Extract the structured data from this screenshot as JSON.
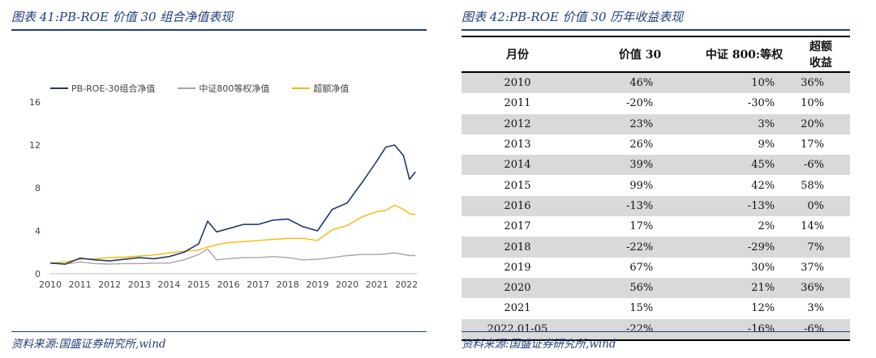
{
  "left": {
    "title": "图表 41:PB-ROE 价值 30 组合净值表现",
    "source": "资料来源:国盛证券研究所,wind"
  },
  "right": {
    "title": "图表 42:PB-ROE 价值 30 历年收益表现",
    "source": "资料来源:国盛证券研究所,wind"
  },
  "colors": {
    "navy": "#1f3a6e",
    "gray": "#a6a6a6",
    "gold": "#f5b800"
  },
  "chart_data": {
    "type": "line",
    "title": "",
    "xlabel": "",
    "ylabel": "",
    "ylim": [
      0,
      16
    ],
    "yticks": [
      "0",
      "4",
      "8",
      "12",
      "16"
    ],
    "xticks": [
      "2010",
      "2011",
      "2012",
      "2013",
      "2014",
      "2015",
      "2016",
      "2017",
      "2018",
      "2019",
      "2020",
      "2021",
      "2022"
    ],
    "legend_position": "top-left",
    "grid": false,
    "x": [
      2010.0,
      2010.5,
      2011.0,
      2011.5,
      2012.0,
      2012.5,
      2013.0,
      2013.5,
      2014.0,
      2014.5,
      2015.0,
      2015.3,
      2015.6,
      2016.0,
      2016.5,
      2017.0,
      2017.5,
      2018.0,
      2018.5,
      2019.0,
      2019.5,
      2020.0,
      2020.5,
      2021.0,
      2021.3,
      2021.6,
      2021.9,
      2022.1,
      2022.3
    ],
    "series": [
      {
        "name": "PB-ROE-30组合净值",
        "values": [
          1.0,
          0.9,
          1.46,
          1.3,
          1.2,
          1.35,
          1.5,
          1.4,
          1.6,
          2.0,
          2.8,
          4.9,
          3.9,
          4.2,
          4.6,
          4.6,
          5.0,
          5.1,
          4.4,
          4.0,
          6.0,
          6.6,
          8.5,
          10.5,
          11.8,
          12.0,
          11.0,
          8.8,
          9.5
        ]
      },
      {
        "name": "中证800等权净值",
        "values": [
          1.0,
          0.9,
          1.1,
          0.95,
          0.9,
          0.95,
          0.95,
          1.0,
          1.0,
          1.3,
          1.8,
          2.3,
          1.3,
          1.4,
          1.5,
          1.5,
          1.6,
          1.5,
          1.3,
          1.35,
          1.5,
          1.7,
          1.8,
          1.8,
          1.85,
          1.95,
          1.8,
          1.7,
          1.7
        ]
      },
      {
        "name": "超额净值",
        "values": [
          1.0,
          1.1,
          1.35,
          1.4,
          1.5,
          1.55,
          1.65,
          1.75,
          1.95,
          2.1,
          2.2,
          2.5,
          2.7,
          2.9,
          3.0,
          3.1,
          3.2,
          3.3,
          3.3,
          3.1,
          4.1,
          4.5,
          5.3,
          5.8,
          5.9,
          6.4,
          6.0,
          5.6,
          5.5
        ]
      }
    ]
  },
  "table": {
    "headers": [
      "月份",
      "价值 30",
      "中证 800:等权",
      "超额收益"
    ],
    "rows": [
      [
        "2010",
        "46%",
        "10%",
        "36%"
      ],
      [
        "2011",
        "-20%",
        "-30%",
        "10%"
      ],
      [
        "2012",
        "23%",
        "3%",
        "20%"
      ],
      [
        "2013",
        "26%",
        "9%",
        "17%"
      ],
      [
        "2014",
        "39%",
        "45%",
        "-6%"
      ],
      [
        "2015",
        "99%",
        "42%",
        "58%"
      ],
      [
        "2016",
        "-13%",
        "-13%",
        "0%"
      ],
      [
        "2017",
        "17%",
        "2%",
        "14%"
      ],
      [
        "2018",
        "-22%",
        "-29%",
        "7%"
      ],
      [
        "2019",
        "67%",
        "30%",
        "37%"
      ],
      [
        "2020",
        "56%",
        "21%",
        "36%"
      ],
      [
        "2021",
        "15%",
        "12%",
        "3%"
      ],
      [
        "2022.01-05",
        "-22%",
        "-16%",
        "-6%"
      ]
    ]
  }
}
